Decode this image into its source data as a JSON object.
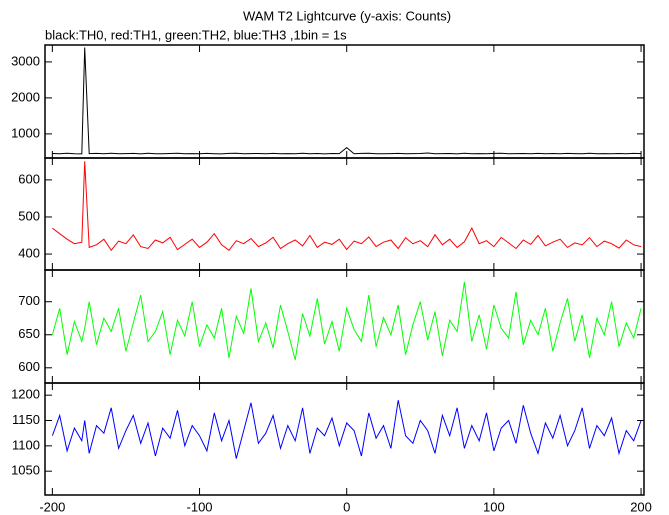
{
  "chart_data": [
    {
      "type": "line",
      "title": "WAM T2 Lightcurve (y-axis: Counts)",
      "subtitle": "black:TH0, red:TH1, green:TH2, blue:TH3 ,1bin = 1s",
      "x": [
        -200,
        -195,
        -190,
        -185,
        -180,
        -178,
        -175,
        -170,
        -165,
        -160,
        -155,
        -150,
        -145,
        -140,
        -135,
        -130,
        -125,
        -120,
        -115,
        -110,
        -105,
        -100,
        -95,
        -90,
        -85,
        -80,
        -75,
        -70,
        -65,
        -60,
        -55,
        -50,
        -45,
        -40,
        -35,
        -30,
        -25,
        -20,
        -15,
        -10,
        -5,
        0,
        5,
        10,
        15,
        20,
        25,
        30,
        35,
        40,
        45,
        50,
        55,
        60,
        65,
        70,
        75,
        80,
        85,
        90,
        95,
        100,
        105,
        110,
        115,
        120,
        125,
        130,
        135,
        140,
        145,
        150,
        155,
        160,
        165,
        170,
        175,
        180,
        185,
        190,
        195,
        200
      ],
      "series": [
        {
          "color": "#000000",
          "values": [
            455,
            448,
            462,
            450,
            444,
            3400,
            452,
            458,
            446,
            460,
            449,
            451,
            457,
            443,
            462,
            450,
            447,
            455,
            461,
            448,
            452,
            446,
            459,
            450,
            444,
            457,
            463,
            449,
            451,
            455,
            446,
            458,
            450,
            452,
            447,
            460,
            449,
            454,
            445,
            456,
            451,
            620,
            448,
            457,
            462,
            450,
            446,
            453,
            459,
            447,
            452,
            455,
            470,
            448,
            451,
            456,
            444,
            460,
            450,
            453,
            447,
            458,
            462,
            449,
            451,
            455,
            446,
            459,
            450,
            454,
            448,
            457,
            452,
            446,
            460,
            450,
            453,
            447,
            455,
            449,
            458,
            451
          ]
        }
      ],
      "xlim": [
        -205,
        202
      ],
      "xticks": [
        -200,
        -100,
        0,
        100,
        200
      ],
      "ylim": [
        330,
        3470
      ],
      "yticks": [
        1000,
        2000,
        3000
      ]
    },
    {
      "type": "line",
      "x": [
        -200,
        -195,
        -190,
        -185,
        -180,
        -178,
        -175,
        -170,
        -165,
        -160,
        -155,
        -150,
        -145,
        -140,
        -135,
        -130,
        -125,
        -120,
        -115,
        -110,
        -105,
        -100,
        -95,
        -90,
        -85,
        -80,
        -75,
        -70,
        -65,
        -60,
        -55,
        -50,
        -45,
        -40,
        -35,
        -30,
        -25,
        -20,
        -15,
        -10,
        -5,
        0,
        5,
        10,
        15,
        20,
        25,
        30,
        35,
        40,
        45,
        50,
        55,
        60,
        65,
        70,
        75,
        80,
        85,
        90,
        95,
        100,
        105,
        110,
        115,
        120,
        125,
        130,
        135,
        140,
        145,
        150,
        155,
        160,
        165,
        170,
        175,
        180,
        185,
        190,
        195,
        200
      ],
      "series": [
        {
          "color": "#ff0000",
          "values": [
            470,
            455,
            440,
            428,
            432,
            650,
            418,
            425,
            440,
            410,
            435,
            428,
            452,
            420,
            415,
            438,
            430,
            445,
            412,
            426,
            440,
            418,
            432,
            455,
            425,
            410,
            436,
            428,
            442,
            420,
            430,
            445,
            415,
            428,
            438,
            422,
            450,
            418,
            432,
            426,
            440,
            412,
            435,
            428,
            446,
            420,
            432,
            438,
            415,
            444,
            428,
            436,
            420,
            452,
            425,
            440,
            418,
            433,
            470,
            428,
            436,
            420,
            445,
            430,
            415,
            438,
            426,
            450,
            422,
            432,
            440,
            418,
            430,
            425,
            444,
            420,
            435,
            428,
            416,
            438,
            425,
            420
          ]
        }
      ],
      "xlim": [
        -205,
        202
      ],
      "xticks": [
        -200,
        -100,
        0,
        100,
        200
      ],
      "ylim": [
        357,
        659
      ],
      "yticks": [
        400,
        500,
        600
      ]
    },
    {
      "type": "line",
      "x": [
        -200,
        -195,
        -190,
        -185,
        -180,
        -178,
        -175,
        -170,
        -165,
        -160,
        -155,
        -150,
        -145,
        -140,
        -135,
        -130,
        -125,
        -120,
        -115,
        -110,
        -105,
        -100,
        -95,
        -90,
        -85,
        -80,
        -75,
        -70,
        -65,
        -60,
        -55,
        -50,
        -45,
        -40,
        -35,
        -30,
        -25,
        -20,
        -15,
        -10,
        -5,
        0,
        5,
        10,
        15,
        20,
        25,
        30,
        35,
        40,
        45,
        50,
        55,
        60,
        65,
        70,
        75,
        80,
        85,
        90,
        95,
        100,
        105,
        110,
        115,
        120,
        125,
        130,
        135,
        140,
        145,
        150,
        155,
        160,
        165,
        170,
        175,
        180,
        185,
        190,
        195,
        200
      ],
      "series": [
        {
          "color": "#00ff00",
          "values": [
            650,
            690,
            620,
            670,
            640,
            660,
            700,
            635,
            675,
            655,
            690,
            625,
            668,
            710,
            640,
            655,
            685,
            620,
            672,
            648,
            700,
            632,
            665,
            645,
            690,
            615,
            678,
            652,
            720,
            640,
            668,
            630,
            695,
            655,
            612,
            682,
            648,
            705,
            636,
            670,
            625,
            690,
            658,
            640,
            710,
            632,
            676,
            650,
            695,
            620,
            665,
            700,
            642,
            685,
            618,
            672,
            655,
            730,
            640,
            680,
            628,
            695,
            660,
            645,
            715,
            635,
            672,
            650,
            690,
            625,
            668,
            705,
            640,
            680,
            615,
            675,
            650,
            700,
            632,
            668,
            645,
            690
          ]
        }
      ],
      "xlim": [
        -205,
        202
      ],
      "xticks": [
        -200,
        -100,
        0,
        100,
        200
      ],
      "ylim": [
        577,
        748
      ],
      "yticks": [
        600,
        650,
        700
      ]
    },
    {
      "type": "line",
      "x": [
        -200,
        -195,
        -190,
        -185,
        -180,
        -178,
        -175,
        -170,
        -165,
        -160,
        -155,
        -150,
        -145,
        -140,
        -135,
        -130,
        -125,
        -120,
        -115,
        -110,
        -105,
        -100,
        -95,
        -90,
        -85,
        -80,
        -75,
        -70,
        -65,
        -60,
        -55,
        -50,
        -45,
        -40,
        -35,
        -30,
        -25,
        -20,
        -15,
        -10,
        -5,
        0,
        5,
        10,
        15,
        20,
        25,
        30,
        35,
        40,
        45,
        50,
        55,
        60,
        65,
        70,
        75,
        80,
        85,
        90,
        95,
        100,
        105,
        110,
        115,
        120,
        125,
        130,
        135,
        140,
        145,
        150,
        155,
        160,
        165,
        170,
        175,
        180,
        185,
        190,
        195,
        200
      ],
      "series": [
        {
          "color": "#0000ff",
          "values": [
            1120,
            1160,
            1090,
            1135,
            1110,
            1150,
            1085,
            1140,
            1125,
            1175,
            1095,
            1130,
            1160,
            1105,
            1145,
            1080,
            1135,
            1115,
            1170,
            1100,
            1140,
            1120,
            1090,
            1165,
            1110,
            1150,
            1075,
            1130,
            1185,
            1105,
            1125,
            1160,
            1095,
            1140,
            1110,
            1175,
            1085,
            1135,
            1120,
            1155,
            1100,
            1145,
            1130,
            1080,
            1165,
            1115,
            1140,
            1095,
            1190,
            1120,
            1105,
            1150,
            1130,
            1085,
            1160,
            1120,
            1175,
            1095,
            1140,
            1110,
            1165,
            1090,
            1135,
            1150,
            1105,
            1180,
            1125,
            1085,
            1145,
            1115,
            1160,
            1100,
            1130,
            1175,
            1095,
            1140,
            1120,
            1155,
            1085,
            1130,
            1110,
            1150
          ]
        }
      ],
      "xlim": [
        -205,
        202
      ],
      "xticks": [
        -200,
        -100,
        0,
        100,
        200
      ],
      "ylim": [
        1003,
        1224
      ],
      "yticks": [
        1050,
        1100,
        1150,
        1200
      ]
    }
  ]
}
